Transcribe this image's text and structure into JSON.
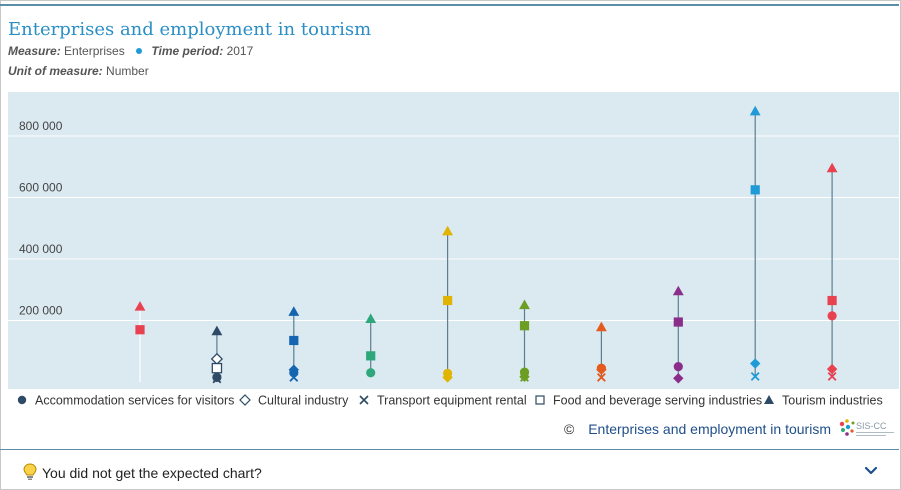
{
  "header": {
    "title": "Enterprises and employment in tourism",
    "measure_label": "Measure:",
    "measure_value": "Enterprises",
    "period_label": "Time period:",
    "period_value": "2017",
    "unit_label": "Unit of measure:",
    "unit_value": "Number"
  },
  "source": {
    "copyright": "©",
    "link_text": "Enterprises and employment in tourism",
    "logo_text": "SIS-CC"
  },
  "footer": {
    "question": "You did not get the expected chart?"
  },
  "colors": {
    "title": "#2b8ec5",
    "plot_bg": "#dbe9f1",
    "stem": "#5b7f8e",
    "legend_mark": "#2e4a66"
  },
  "chart_data": {
    "type": "scatter",
    "title": "",
    "xlabel": "",
    "ylabel": "",
    "ylim": [
      0,
      900000
    ],
    "yticks": [
      200000,
      400000,
      600000,
      800000
    ],
    "ytick_labels": [
      "200 000",
      "400 000",
      "600 000",
      "800 000"
    ],
    "grid": true,
    "legend_placement": "bottom",
    "series": [
      {
        "name": "Accommodation services for visitors",
        "marker": "circle"
      },
      {
        "name": "Cultural industry",
        "marker": "diamond-open"
      },
      {
        "name": "Transport equipment rental",
        "marker": "x"
      },
      {
        "name": "Food and beverage serving industries",
        "marker": "square-open"
      },
      {
        "name": "Tourism industries",
        "marker": "triangle"
      }
    ],
    "groups": [
      {
        "color": "#e8414f",
        "accommodation": null,
        "cultural": null,
        "transport": null,
        "food": 170000,
        "tourism": 245000
      },
      {
        "color": "#2e4a66",
        "accommodation": 15000,
        "cultural": 75000,
        "transport": 10000,
        "food": 45000,
        "tourism": 165000
      },
      {
        "color": "#1565b0",
        "accommodation": 30000,
        "cultural": 40000,
        "transport": 15000,
        "food": 135000,
        "tourism": 228000
      },
      {
        "color": "#2ea87a",
        "accommodation": 30000,
        "cultural": null,
        "transport": null,
        "food": 85000,
        "tourism": 205000
      },
      {
        "color": "#e0b400",
        "accommodation": 28000,
        "cultural": 15000,
        "transport": null,
        "food": 265000,
        "tourism": 490000
      },
      {
        "color": "#6b9e23",
        "accommodation": 32000,
        "cultural": 17000,
        "transport": 15000,
        "food": 183000,
        "tourism": 250000
      },
      {
        "color": "#e55a1d",
        "accommodation": 45000,
        "cultural": 40000,
        "transport": 15000,
        "food": null,
        "tourism": 178000
      },
      {
        "color": "#8b2e8a",
        "accommodation": 50000,
        "cultural": 12000,
        "transport": null,
        "food": 195000,
        "tourism": 295000
      },
      {
        "color": "#1e9bd7",
        "accommodation": null,
        "cultural": 60000,
        "transport": 18000,
        "food": 625000,
        "tourism": 880000
      },
      {
        "color": "#e8414f",
        "accommodation": 215000,
        "cultural": 42000,
        "transport": 18000,
        "food": 265000,
        "tourism": 695000
      }
    ]
  }
}
